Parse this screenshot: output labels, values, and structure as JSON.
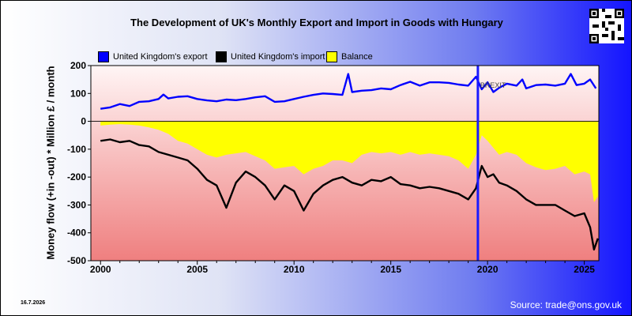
{
  "meta": {
    "date": "16.7.2026",
    "source": "Source: trade@ons.gov.uk"
  },
  "chart_data": {
    "type": "line",
    "title": "The Development of UK's Monthly Export and Import in Goods with Hungary",
    "ylabel": "Money flow (+in -out) * Million £ / month",
    "xlabel": "",
    "xlim": [
      1999.5,
      2025.75
    ],
    "ylim": [
      -500,
      200
    ],
    "x_ticks": [
      "2000",
      "2005",
      "2010",
      "2015",
      "2020",
      "2025"
    ],
    "y_ticks": [
      "200",
      "100",
      "0",
      "-100",
      "-200",
      "-300",
      "-400",
      "-500"
    ],
    "marker_line_x": 2019.5,
    "marker_label": "BREXIT",
    "legend": {
      "placement": "top-left"
    },
    "series": [
      {
        "name": "United Kingdom's export",
        "color": "#0000ff",
        "x": [
          2000.0,
          2000.5,
          2001.0,
          2001.5,
          2002.0,
          2002.5,
          2003.0,
          2003.25,
          2003.5,
          2004.0,
          2004.5,
          2005.0,
          2005.5,
          2006.0,
          2006.5,
          2007.0,
          2007.5,
          2008.0,
          2008.5,
          2009.0,
          2009.5,
          2010.0,
          2010.5,
          2011.0,
          2011.5,
          2012.0,
          2012.5,
          2012.8,
          2013.0,
          2013.5,
          2014.0,
          2014.5,
          2015.0,
          2015.5,
          2016.0,
          2016.5,
          2017.0,
          2017.5,
          2018.0,
          2018.5,
          2019.0,
          2019.4,
          2019.7,
          2020.0,
          2020.3,
          2020.6,
          2021.0,
          2021.5,
          2021.8,
          2022.0,
          2022.5,
          2023.0,
          2023.5,
          2024.0,
          2024.3,
          2024.6,
          2025.0,
          2025.3,
          2025.6
        ],
        "y": [
          45,
          50,
          62,
          55,
          70,
          72,
          80,
          96,
          82,
          88,
          90,
          80,
          75,
          72,
          78,
          76,
          80,
          86,
          90,
          70,
          72,
          80,
          88,
          95,
          100,
          98,
          95,
          170,
          105,
          110,
          112,
          118,
          115,
          130,
          142,
          128,
          140,
          140,
          138,
          132,
          128,
          160,
          115,
          140,
          105,
          120,
          135,
          128,
          150,
          118,
          130,
          132,
          128,
          135,
          170,
          130,
          135,
          150,
          118
        ]
      },
      {
        "name": "United Kingdom's import",
        "color": "#000000",
        "x": [
          2000.0,
          2000.5,
          2001.0,
          2001.5,
          2002.0,
          2002.5,
          2003.0,
          2003.5,
          2004.0,
          2004.5,
          2005.0,
          2005.5,
          2006.0,
          2006.5,
          2007.0,
          2007.5,
          2008.0,
          2008.5,
          2009.0,
          2009.5,
          2010.0,
          2010.5,
          2011.0,
          2011.5,
          2012.0,
          2012.5,
          2013.0,
          2013.5,
          2014.0,
          2014.5,
          2015.0,
          2015.5,
          2016.0,
          2016.5,
          2017.0,
          2017.5,
          2018.0,
          2018.5,
          2019.0,
          2019.4,
          2019.7,
          2020.0,
          2020.3,
          2020.6,
          2021.0,
          2021.5,
          2022.0,
          2022.5,
          2023.0,
          2023.5,
          2024.0,
          2024.5,
          2025.0,
          2025.3,
          2025.5,
          2025.7
        ],
        "y": [
          -70,
          -65,
          -75,
          -70,
          -85,
          -90,
          -110,
          -120,
          -130,
          -140,
          -170,
          -210,
          -230,
          -310,
          -220,
          -180,
          -200,
          -230,
          -280,
          -230,
          -250,
          -320,
          -260,
          -230,
          -210,
          -200,
          -220,
          -230,
          -210,
          -215,
          -200,
          -225,
          -230,
          -240,
          -235,
          -240,
          -250,
          -260,
          -280,
          -240,
          -160,
          -200,
          -190,
          -220,
          -230,
          -250,
          -280,
          -300,
          -300,
          -300,
          -320,
          -340,
          -330,
          -380,
          -460,
          -420
        ]
      },
      {
        "name": "Balance",
        "color": "#ffff00",
        "x": [
          2000.0,
          2000.5,
          2001.0,
          2001.5,
          2002.0,
          2002.5,
          2003.0,
          2003.5,
          2004.0,
          2004.5,
          2005.0,
          2005.5,
          2006.0,
          2006.5,
          2007.0,
          2007.5,
          2008.0,
          2008.5,
          2009.0,
          2009.5,
          2010.0,
          2010.5,
          2011.0,
          2011.5,
          2012.0,
          2012.5,
          2013.0,
          2013.5,
          2014.0,
          2014.5,
          2015.0,
          2015.5,
          2016.0,
          2016.5,
          2017.0,
          2017.5,
          2018.0,
          2018.5,
          2019.0,
          2019.4,
          2019.7,
          2020.0,
          2020.3,
          2020.6,
          2021.0,
          2021.5,
          2022.0,
          2022.5,
          2023.0,
          2023.5,
          2024.0,
          2024.5,
          2025.0,
          2025.3,
          2025.5,
          2025.7
        ],
        "y": [
          -15,
          -12,
          -10,
          -12,
          -15,
          -22,
          -30,
          -45,
          -70,
          -80,
          -100,
          -120,
          -130,
          -120,
          -115,
          -110,
          -125,
          -140,
          -170,
          -165,
          -160,
          -190,
          -170,
          -160,
          -140,
          -140,
          -150,
          -120,
          -110,
          -115,
          -110,
          -120,
          -110,
          -120,
          -115,
          -120,
          -125,
          -140,
          -170,
          -120,
          -50,
          -70,
          -95,
          -120,
          -110,
          -120,
          -150,
          -165,
          -175,
          -170,
          -160,
          -190,
          -180,
          -190,
          -290,
          -270
        ]
      }
    ]
  }
}
